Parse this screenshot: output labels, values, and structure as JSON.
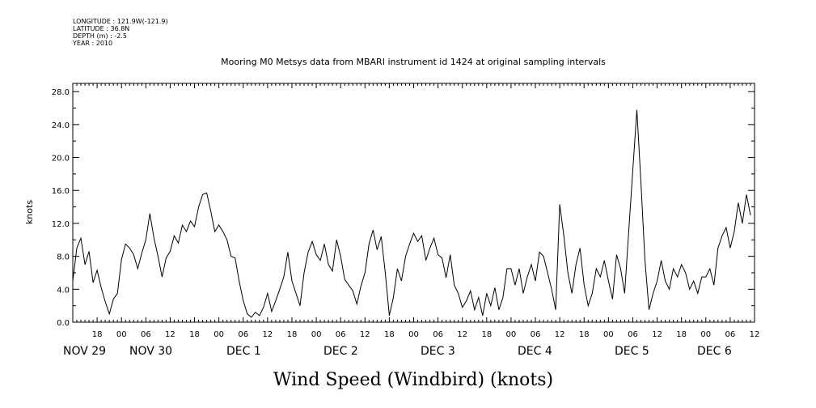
{
  "meta": {
    "longitude": "LONGITUDE : 121.9W(-121.9)",
    "latitude": "LATITUDE : 36.8N",
    "depth": "DEPTH (m) : -2.5",
    "year": "YEAR : 2010"
  },
  "chart_data": {
    "type": "line",
    "title": "Mooring M0 Metsys data from MBARI instrument id 1424 at original sampling intervals",
    "xlabel": "Wind Speed (Windbird) (knots)",
    "ylabel": "knots",
    "ylim": [
      0,
      29
    ],
    "xlim_hours": [
      0,
      168
    ],
    "y_ticks": [
      "0.0",
      "4.0",
      "8.0",
      "12.0",
      "16.0",
      "20.0",
      "24.0",
      "28.0"
    ],
    "x_hour_labels": [
      "18",
      "00",
      "06",
      "12",
      "18",
      "00",
      "06",
      "12",
      "18",
      "00",
      "06",
      "12",
      "18",
      "00",
      "06",
      "12",
      "18",
      "00",
      "06",
      "12",
      "18",
      "00",
      "06",
      "12",
      "18",
      "00",
      "06",
      "12"
    ],
    "x_day_labels": [
      "NOV 29",
      "NOV 30",
      "DEC  1",
      "DEC  2",
      "DEC  3",
      "DEC  4",
      "DEC  5",
      "DEC  6"
    ],
    "series": [
      {
        "values": [
          [
            0,
            5.0
          ],
          [
            1,
            9.0
          ],
          [
            2,
            10.2
          ],
          [
            3,
            7.0
          ],
          [
            4,
            8.6
          ],
          [
            5,
            4.8
          ],
          [
            6,
            6.3
          ],
          [
            7,
            4.2
          ],
          [
            8,
            2.5
          ],
          [
            9,
            1.0
          ],
          [
            10,
            2.8
          ],
          [
            11,
            3.5
          ],
          [
            12,
            7.6
          ],
          [
            13,
            9.5
          ],
          [
            14,
            9.0
          ],
          [
            15,
            8.2
          ],
          [
            16,
            6.5
          ],
          [
            17,
            8.4
          ],
          [
            18,
            10.0
          ],
          [
            19,
            13.2
          ],
          [
            20,
            10.2
          ],
          [
            21,
            8.0
          ],
          [
            22,
            5.5
          ],
          [
            23,
            7.8
          ],
          [
            24,
            8.6
          ],
          [
            25,
            10.5
          ],
          [
            26,
            9.6
          ],
          [
            27,
            11.8
          ],
          [
            28,
            11.0
          ],
          [
            29,
            12.3
          ],
          [
            30,
            11.6
          ],
          [
            31,
            14.0
          ],
          [
            32,
            15.5
          ],
          [
            33,
            15.7
          ],
          [
            34,
            13.5
          ],
          [
            35,
            11.0
          ],
          [
            36,
            11.8
          ],
          [
            37,
            11.0
          ],
          [
            38,
            10.0
          ],
          [
            39,
            8.0
          ],
          [
            40,
            7.8
          ],
          [
            41,
            5.0
          ],
          [
            42,
            2.6
          ],
          [
            43,
            1.0
          ],
          [
            44,
            0.6
          ],
          [
            45,
            1.2
          ],
          [
            46,
            0.8
          ],
          [
            47,
            1.8
          ],
          [
            48,
            3.5
          ],
          [
            49,
            1.3
          ],
          [
            50,
            2.6
          ],
          [
            51,
            4.0
          ],
          [
            52,
            5.5
          ],
          [
            53,
            8.5
          ],
          [
            54,
            5.0
          ],
          [
            55,
            3.5
          ],
          [
            56,
            2.0
          ],
          [
            57,
            6.0
          ],
          [
            58,
            8.5
          ],
          [
            59,
            9.8
          ],
          [
            60,
            8.2
          ],
          [
            61,
            7.5
          ],
          [
            62,
            9.5
          ],
          [
            63,
            7.0
          ],
          [
            64,
            6.2
          ],
          [
            65,
            10.0
          ],
          [
            66,
            8.0
          ],
          [
            67,
            5.2
          ],
          [
            68,
            4.5
          ],
          [
            69,
            3.8
          ],
          [
            70,
            2.2
          ],
          [
            71,
            4.4
          ],
          [
            72,
            6.0
          ],
          [
            73,
            9.5
          ],
          [
            74,
            11.2
          ],
          [
            75,
            8.8
          ],
          [
            76,
            10.4
          ],
          [
            77,
            6.0
          ],
          [
            78,
            0.8
          ],
          [
            79,
            3.0
          ],
          [
            80,
            6.5
          ],
          [
            81,
            5.0
          ],
          [
            82,
            8.0
          ],
          [
            83,
            9.5
          ],
          [
            84,
            10.8
          ],
          [
            85,
            9.8
          ],
          [
            86,
            10.5
          ],
          [
            87,
            7.5
          ],
          [
            88,
            9.0
          ],
          [
            89,
            10.2
          ],
          [
            90,
            8.2
          ],
          [
            91,
            7.8
          ],
          [
            92,
            5.4
          ],
          [
            93,
            8.2
          ],
          [
            94,
            4.5
          ],
          [
            95,
            3.5
          ],
          [
            96,
            1.8
          ],
          [
            97,
            2.6
          ],
          [
            98,
            3.8
          ],
          [
            99,
            1.5
          ],
          [
            100,
            3.0
          ],
          [
            101,
            0.8
          ],
          [
            102,
            3.5
          ],
          [
            103,
            2.0
          ],
          [
            104,
            4.2
          ],
          [
            105,
            1.5
          ],
          [
            106,
            3.0
          ],
          [
            107,
            6.5
          ],
          [
            108,
            6.5
          ],
          [
            109,
            4.5
          ],
          [
            110,
            6.5
          ],
          [
            111,
            3.5
          ],
          [
            112,
            5.5
          ],
          [
            113,
            7.0
          ],
          [
            114,
            5.0
          ],
          [
            115,
            8.5
          ],
          [
            116,
            8.0
          ],
          [
            117,
            6.0
          ],
          [
            118,
            4.0
          ],
          [
            119,
            1.5
          ],
          [
            120,
            14.3
          ],
          [
            121,
            10.5
          ],
          [
            122,
            6.0
          ],
          [
            123,
            3.5
          ],
          [
            124,
            7.0
          ],
          [
            125,
            9.0
          ],
          [
            126,
            4.5
          ],
          [
            127,
            2.0
          ],
          [
            128,
            3.5
          ],
          [
            129,
            6.5
          ],
          [
            130,
            5.5
          ],
          [
            131,
            7.5
          ],
          [
            132,
            5.0
          ],
          [
            133,
            2.8
          ],
          [
            134,
            8.2
          ],
          [
            135,
            6.5
          ],
          [
            136,
            3.5
          ],
          [
            137,
            11.0
          ],
          [
            138,
            18.5
          ],
          [
            139,
            25.8
          ],
          [
            140,
            17.0
          ],
          [
            141,
            7.5
          ],
          [
            142,
            1.5
          ],
          [
            143,
            3.5
          ],
          [
            144,
            5.0
          ],
          [
            145,
            7.5
          ],
          [
            146,
            5.0
          ],
          [
            147,
            4.0
          ],
          [
            148,
            6.5
          ],
          [
            149,
            5.5
          ],
          [
            150,
            7.0
          ],
          [
            151,
            6.0
          ],
          [
            152,
            4.0
          ],
          [
            153,
            5.0
          ],
          [
            154,
            3.5
          ],
          [
            155,
            5.5
          ],
          [
            156,
            5.5
          ],
          [
            157,
            6.5
          ],
          [
            158,
            4.5
          ],
          [
            159,
            9.0
          ],
          [
            160,
            10.5
          ],
          [
            161,
            11.5
          ],
          [
            162,
            9.0
          ],
          [
            163,
            11.0
          ],
          [
            164,
            14.5
          ],
          [
            165,
            12.0
          ],
          [
            166,
            15.5
          ],
          [
            167,
            13.0
          ]
        ]
      }
    ]
  }
}
